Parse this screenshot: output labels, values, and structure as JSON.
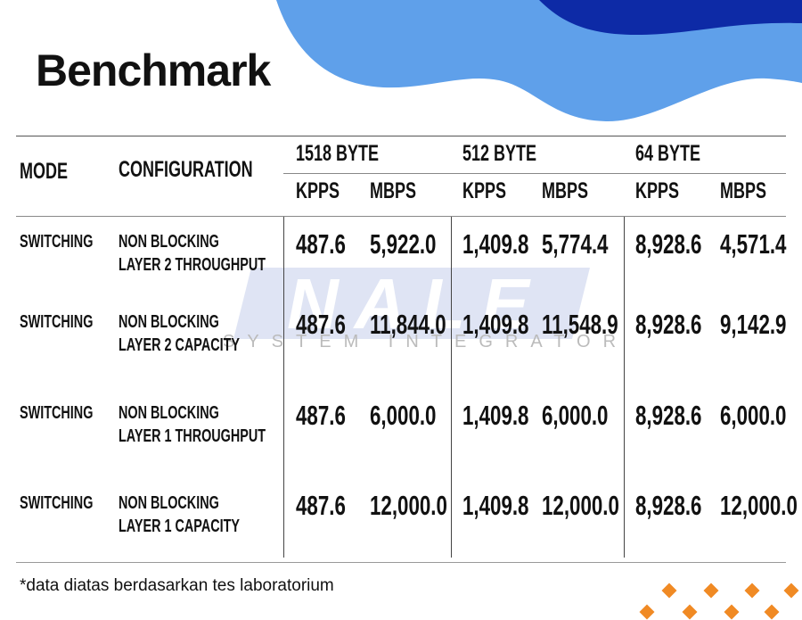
{
  "title": "Benchmark",
  "colors": {
    "wave_light": "#5fa0ea",
    "wave_dark": "#0d2aa6",
    "accent_diamonds": "#f08a24"
  },
  "logo": {
    "name": "NALE",
    "tagline": "SYSTEM INTEGRATOR"
  },
  "table": {
    "headers": {
      "mode": "MODE",
      "configuration": "CONFIGURATION",
      "groups": [
        "1518 BYTE",
        "512 BYTE",
        "64 BYTE"
      ],
      "sub": [
        "KPPS",
        "MBPS",
        "KPPS",
        "MBPS",
        "KPPS",
        "MBPS"
      ]
    },
    "rows": [
      {
        "mode": "SWITCHING",
        "config1": "NON BLOCKING",
        "config2": "LAYER 2 THROUGHPUT",
        "values": [
          "487.6",
          "5,922.0",
          "1,409.8",
          "5,774.4",
          "8,928.6",
          "4,571.4"
        ]
      },
      {
        "mode": "SWITCHING",
        "config1": "NON BLOCKING",
        "config2": "LAYER 2 CAPACITY",
        "values": [
          "487.6",
          "11,844.0",
          "1,409.8",
          "11,548.9",
          "8,928.6",
          "9,142.9"
        ]
      },
      {
        "mode": "SWITCHING",
        "config1": "NON BLOCKING",
        "config2": "LAYER 1 THROUGHPUT",
        "values": [
          "487.6",
          "6,000.0",
          "1,409.8",
          "6,000.0",
          "8,928.6",
          "6,000.0"
        ]
      },
      {
        "mode": "SWITCHING",
        "config1": "NON BLOCKING",
        "config2": "LAYER 1 CAPACITY",
        "values": [
          "487.6",
          "12,000.0",
          "1,409.8",
          "12,000.0",
          "8,928.6",
          "12,000.0"
        ]
      }
    ]
  },
  "footnote": "*data diatas berdasarkan tes laboratorium"
}
